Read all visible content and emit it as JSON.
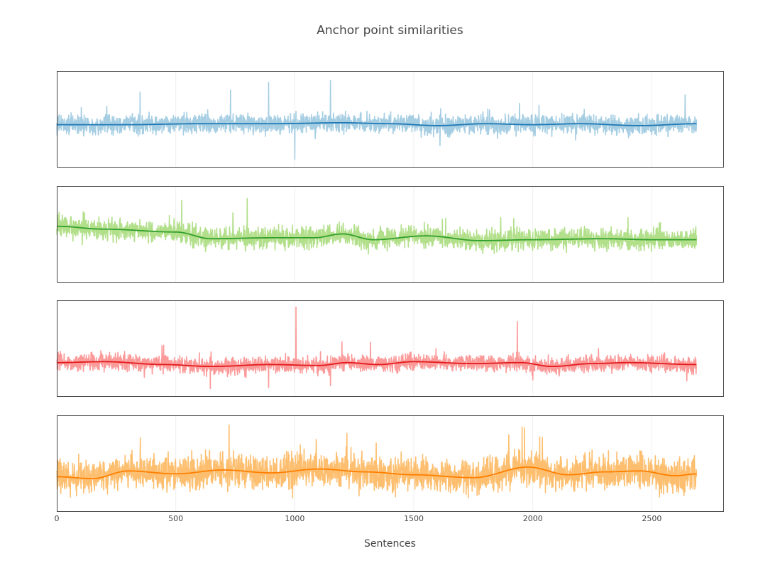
{
  "chart_data": {
    "type": "line",
    "title": "Anchor point similarities",
    "xlabel": "Sentences",
    "ylabel": "",
    "xlim": [
      0,
      2800
    ],
    "x_ticks": [
      0,
      500,
      1000,
      1500,
      2000,
      2500
    ],
    "x_tick_labels": [
      "0",
      "500",
      "1000",
      "1500",
      "2000",
      "2500"
    ],
    "n_points": 2689,
    "grid": true,
    "legend": "none",
    "y_axis_visible": false,
    "panels": [
      {
        "raw_color": "#a6cee3",
        "smooth_color": "#1f78b4",
        "noise_amplitude": 0.09,
        "smooth_trend": [
          [
            0,
            0.44
          ],
          [
            300,
            0.44
          ],
          [
            600,
            0.45
          ],
          [
            900,
            0.45
          ],
          [
            1200,
            0.46
          ],
          [
            1400,
            0.45
          ],
          [
            1600,
            0.43
          ],
          [
            1800,
            0.45
          ],
          [
            2000,
            0.44
          ],
          [
            2200,
            0.45
          ],
          [
            2450,
            0.43
          ],
          [
            2689,
            0.45
          ]
        ],
        "spikes": [
          [
            350,
            0.78
          ],
          [
            730,
            0.8
          ],
          [
            890,
            0.88
          ],
          [
            1000,
            0.08
          ],
          [
            1150,
            0.9
          ],
          [
            1610,
            0.22
          ],
          [
            1930,
            0.32
          ],
          [
            2180,
            0.28
          ],
          [
            2640,
            0.75
          ]
        ]
      },
      {
        "raw_color": "#b2df8a",
        "smooth_color": "#33a02c",
        "noise_amplitude": 0.1,
        "smooth_trend": [
          [
            0,
            0.58
          ],
          [
            200,
            0.55
          ],
          [
            500,
            0.52
          ],
          [
            650,
            0.45
          ],
          [
            900,
            0.46
          ],
          [
            1080,
            0.46
          ],
          [
            1200,
            0.5
          ],
          [
            1330,
            0.44
          ],
          [
            1550,
            0.48
          ],
          [
            1780,
            0.43
          ],
          [
            2000,
            0.44
          ],
          [
            2300,
            0.45
          ],
          [
            2500,
            0.44
          ],
          [
            2689,
            0.44
          ]
        ],
        "spikes": [
          [
            525,
            0.85
          ],
          [
            740,
            0.72
          ],
          [
            800,
            0.87
          ],
          [
            1920,
            0.66
          ],
          [
            2400,
            0.67
          ]
        ]
      },
      {
        "raw_color": "#fb9a99",
        "smooth_color": "#e31a1c",
        "noise_amplitude": 0.08,
        "smooth_trend": [
          [
            0,
            0.35
          ],
          [
            200,
            0.36
          ],
          [
            450,
            0.33
          ],
          [
            650,
            0.31
          ],
          [
            900,
            0.33
          ],
          [
            1100,
            0.32
          ],
          [
            1220,
            0.35
          ],
          [
            1350,
            0.33
          ],
          [
            1500,
            0.36
          ],
          [
            1750,
            0.34
          ],
          [
            1950,
            0.35
          ],
          [
            2080,
            0.31
          ],
          [
            2250,
            0.34
          ],
          [
            2400,
            0.35
          ],
          [
            2689,
            0.33
          ]
        ],
        "spikes": [
          [
            1005,
            0.93
          ],
          [
            1935,
            0.78
          ],
          [
            645,
            0.08
          ],
          [
            890,
            0.09
          ],
          [
            1150,
            0.11
          ],
          [
            2000,
            0.17
          ]
        ]
      },
      {
        "raw_color": "#fdbf6f",
        "smooth_color": "#ff7f00",
        "noise_amplitude": 0.16,
        "smooth_trend": [
          [
            0,
            0.36
          ],
          [
            150,
            0.34
          ],
          [
            300,
            0.42
          ],
          [
            500,
            0.39
          ],
          [
            700,
            0.43
          ],
          [
            900,
            0.4
          ],
          [
            1100,
            0.44
          ],
          [
            1300,
            0.41
          ],
          [
            1500,
            0.38
          ],
          [
            1750,
            0.35
          ],
          [
            1980,
            0.46
          ],
          [
            2150,
            0.38
          ],
          [
            2300,
            0.41
          ],
          [
            2450,
            0.42
          ],
          [
            2600,
            0.37
          ],
          [
            2689,
            0.39
          ]
        ],
        "spikes": [
          [
            1955,
            0.88
          ],
          [
            2040,
            0.77
          ],
          [
            1090,
            0.75
          ],
          [
            1270,
            0.16
          ]
        ]
      }
    ]
  }
}
